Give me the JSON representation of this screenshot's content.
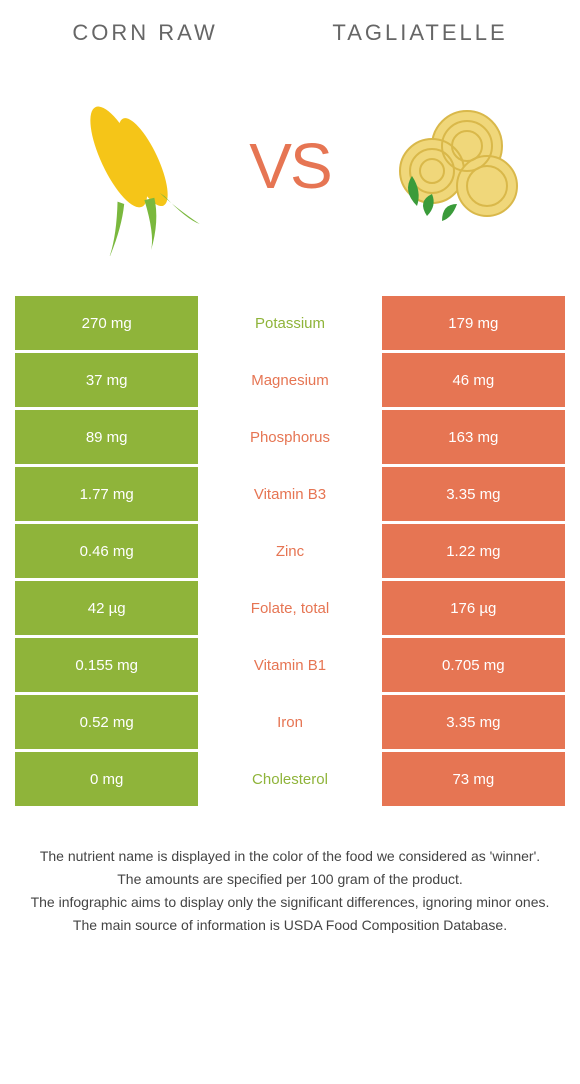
{
  "left_food": "CORN RAW",
  "right_food": "TAGLIATELLE",
  "vs": "VS",
  "colors": {
    "left": "#8fb43a",
    "right": "#e67553",
    "left_dim": "#8fb43a",
    "right_dim": "#e67553"
  },
  "rows": [
    {
      "nutrient": "Potassium",
      "left": "270 mg",
      "right": "179 mg",
      "winner": "left"
    },
    {
      "nutrient": "Magnesium",
      "left": "37 mg",
      "right": "46 mg",
      "winner": "right"
    },
    {
      "nutrient": "Phosphorus",
      "left": "89 mg",
      "right": "163 mg",
      "winner": "right"
    },
    {
      "nutrient": "Vitamin B3",
      "left": "1.77 mg",
      "right": "3.35 mg",
      "winner": "right"
    },
    {
      "nutrient": "Zinc",
      "left": "0.46 mg",
      "right": "1.22 mg",
      "winner": "right"
    },
    {
      "nutrient": "Folate, total",
      "left": "42 µg",
      "right": "176 µg",
      "winner": "right"
    },
    {
      "nutrient": "Vitamin B1",
      "left": "0.155 mg",
      "right": "0.705 mg",
      "winner": "right"
    },
    {
      "nutrient": "Iron",
      "left": "0.52 mg",
      "right": "3.35 mg",
      "winner": "right"
    },
    {
      "nutrient": "Cholesterol",
      "left": "0 mg",
      "right": "73 mg",
      "winner": "left"
    }
  ],
  "footer": [
    "The nutrient name is displayed in the color of the food we considered as 'winner'.",
    "The amounts are specified per 100 gram of the product.",
    "The infographic aims to display only the significant differences, ignoring minor ones.",
    "The main source of information is USDA Food Composition Database."
  ]
}
